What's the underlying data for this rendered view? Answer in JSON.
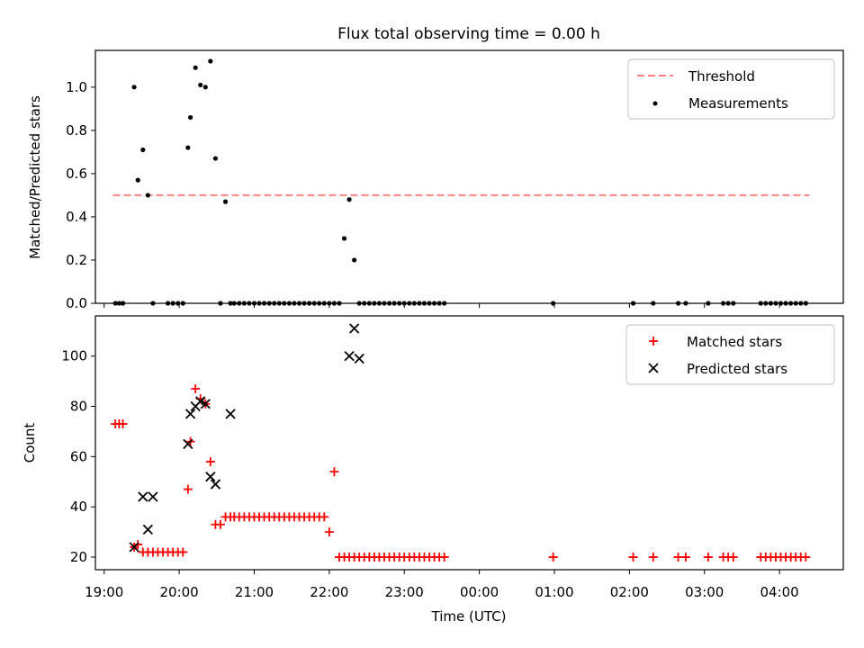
{
  "chart_data": [
    {
      "type": "scatter",
      "title": "Flux total observing time = 0.00 h",
      "xlabel": "",
      "ylabel": "Matched/Predicted stars",
      "xlim": [
        "18:53",
        "04:51"
      ],
      "ylim": [
        0,
        1.17
      ],
      "yticks": [
        0.0,
        0.2,
        0.4,
        0.6,
        0.8,
        1.0
      ],
      "ytick_labels": [
        "0.0",
        "0.2",
        "0.4",
        "0.6",
        "0.8",
        "1.0"
      ],
      "grid": false,
      "legend": {
        "placement": "top-right",
        "entries": [
          "Threshold",
          "Measurements"
        ]
      },
      "series": [
        {
          "name": "Threshold",
          "style": "dashed-line",
          "color": "#ff7f7f",
          "x": [
            "19:07",
            "04:24"
          ],
          "y": [
            0.5,
            0.5
          ]
        },
        {
          "name": "Measurements",
          "style": "dot",
          "color": "#000000",
          "x": [
            "19:09",
            "19:12",
            "19:15",
            "19:24",
            "19:27",
            "19:31",
            "19:35",
            "19:39",
            "19:51",
            "19:55",
            "19:59",
            "20:03",
            "20:07",
            "20:09",
            "20:13",
            "20:17",
            "20:21",
            "20:25",
            "20:29",
            "20:33",
            "20:37",
            "20:41",
            "20:44",
            "20:48",
            "20:52",
            "20:56",
            "21:00",
            "21:04",
            "21:08",
            "21:12",
            "21:16",
            "21:20",
            "21:24",
            "21:28",
            "21:32",
            "21:36",
            "21:40",
            "21:44",
            "21:48",
            "21:52",
            "21:56",
            "22:00",
            "22:04",
            "22:08",
            "22:12",
            "22:16",
            "22:20",
            "22:24",
            "22:28",
            "22:32",
            "22:36",
            "22:40",
            "22:44",
            "22:48",
            "22:52",
            "22:56",
            "23:00",
            "23:04",
            "23:08",
            "23:12",
            "23:16",
            "23:20",
            "23:24",
            "23:28",
            "23:32",
            "00:59",
            "02:03",
            "02:19",
            "02:39",
            "02:45",
            "03:03",
            "03:15",
            "03:19",
            "03:23",
            "03:45",
            "03:49",
            "03:53",
            "03:57",
            "04:01",
            "04:05",
            "04:09",
            "04:13",
            "04:17",
            "04:21"
          ],
          "y": [
            0,
            0,
            0,
            1.0,
            0.57,
            0.71,
            0.5,
            0,
            0,
            0,
            0,
            0,
            0.72,
            0.86,
            1.09,
            1.01,
            1.0,
            1.12,
            0.67,
            0,
            0.47,
            0,
            0,
            0,
            0,
            0,
            0,
            0,
            0,
            0,
            0,
            0,
            0,
            0,
            0,
            0,
            0,
            0,
            0,
            0,
            0,
            0,
            0,
            0,
            0.3,
            0.48,
            0.2,
            0,
            0,
            0,
            0,
            0,
            0,
            0,
            0,
            0,
            0,
            0,
            0,
            0,
            0,
            0,
            0,
            0,
            0,
            0,
            0,
            0,
            0,
            0,
            0,
            0,
            0,
            0,
            0,
            0,
            0,
            0,
            0,
            0,
            0,
            0,
            0,
            0
          ]
        }
      ]
    },
    {
      "type": "scatter",
      "title": "",
      "xlabel": "Time (UTC)",
      "ylabel": "Count",
      "xlim": [
        "18:53",
        "04:51"
      ],
      "ylim": [
        15,
        116
      ],
      "xticks": [
        "19:00",
        "20:00",
        "21:00",
        "22:00",
        "23:00",
        "00:00",
        "01:00",
        "02:00",
        "03:00",
        "04:00"
      ],
      "yticks": [
        20,
        40,
        60,
        80,
        100
      ],
      "ytick_labels": [
        "20",
        "40",
        "60",
        "80",
        "100"
      ],
      "grid": false,
      "legend": {
        "placement": "top-right",
        "entries": [
          "Matched stars",
          "Predicted stars"
        ]
      },
      "series": [
        {
          "name": "Matched stars",
          "marker": "plus",
          "color": "#ff0000",
          "x": [
            "19:09",
            "19:12",
            "19:15",
            "19:24",
            "19:27",
            "19:31",
            "19:35",
            "19:39",
            "19:43",
            "19:47",
            "19:51",
            "19:55",
            "19:59",
            "20:03",
            "20:07",
            "20:09",
            "20:13",
            "20:17",
            "20:21",
            "20:25",
            "20:29",
            "20:33",
            "20:37",
            "20:41",
            "20:44",
            "20:48",
            "20:52",
            "20:56",
            "21:00",
            "21:04",
            "21:08",
            "21:12",
            "21:16",
            "21:20",
            "21:24",
            "21:28",
            "21:32",
            "21:36",
            "21:40",
            "21:44",
            "21:48",
            "21:52",
            "21:56",
            "22:00",
            "22:04",
            "22:08",
            "22:12",
            "22:16",
            "22:20",
            "22:24",
            "22:28",
            "22:32",
            "22:36",
            "22:40",
            "22:44",
            "22:48",
            "22:52",
            "22:56",
            "23:00",
            "23:04",
            "23:08",
            "23:12",
            "23:16",
            "23:20",
            "23:24",
            "23:28",
            "23:32",
            "00:59",
            "02:03",
            "02:19",
            "02:39",
            "02:45",
            "03:03",
            "03:15",
            "03:19",
            "03:23",
            "03:45",
            "03:49",
            "03:53",
            "03:57",
            "04:01",
            "04:05",
            "04:09",
            "04:13",
            "04:17",
            "04:21"
          ],
          "y": [
            73,
            73,
            73,
            24,
            25,
            22,
            22,
            22,
            22,
            22,
            22,
            22,
            22,
            22,
            47,
            66,
            87,
            83,
            81,
            58,
            33,
            33,
            36,
            36,
            36,
            36,
            36,
            36,
            36,
            36,
            36,
            36,
            36,
            36,
            36,
            36,
            36,
            36,
            36,
            36,
            36,
            36,
            36,
            30,
            54,
            20,
            20,
            20,
            20,
            20,
            20,
            20,
            20,
            20,
            20,
            20,
            20,
            20,
            20,
            20,
            20,
            20,
            20,
            20,
            20,
            20,
            20,
            20,
            20,
            20,
            20,
            20,
            20,
            20,
            20,
            20,
            20,
            20,
            20,
            20,
            20,
            20,
            20,
            20,
            20,
            20
          ]
        },
        {
          "name": "Predicted stars",
          "marker": "x",
          "color": "#000000",
          "x": [
            "19:24",
            "19:31",
            "19:35",
            "19:39",
            "20:07",
            "20:09",
            "20:13",
            "20:17",
            "20:21",
            "20:25",
            "20:29",
            "20:41",
            "22:16",
            "22:20",
            "22:24"
          ],
          "y": [
            24,
            44,
            31,
            44,
            65,
            77,
            80,
            82,
            81,
            52,
            49,
            77,
            100,
            111,
            99
          ]
        }
      ]
    }
  ]
}
